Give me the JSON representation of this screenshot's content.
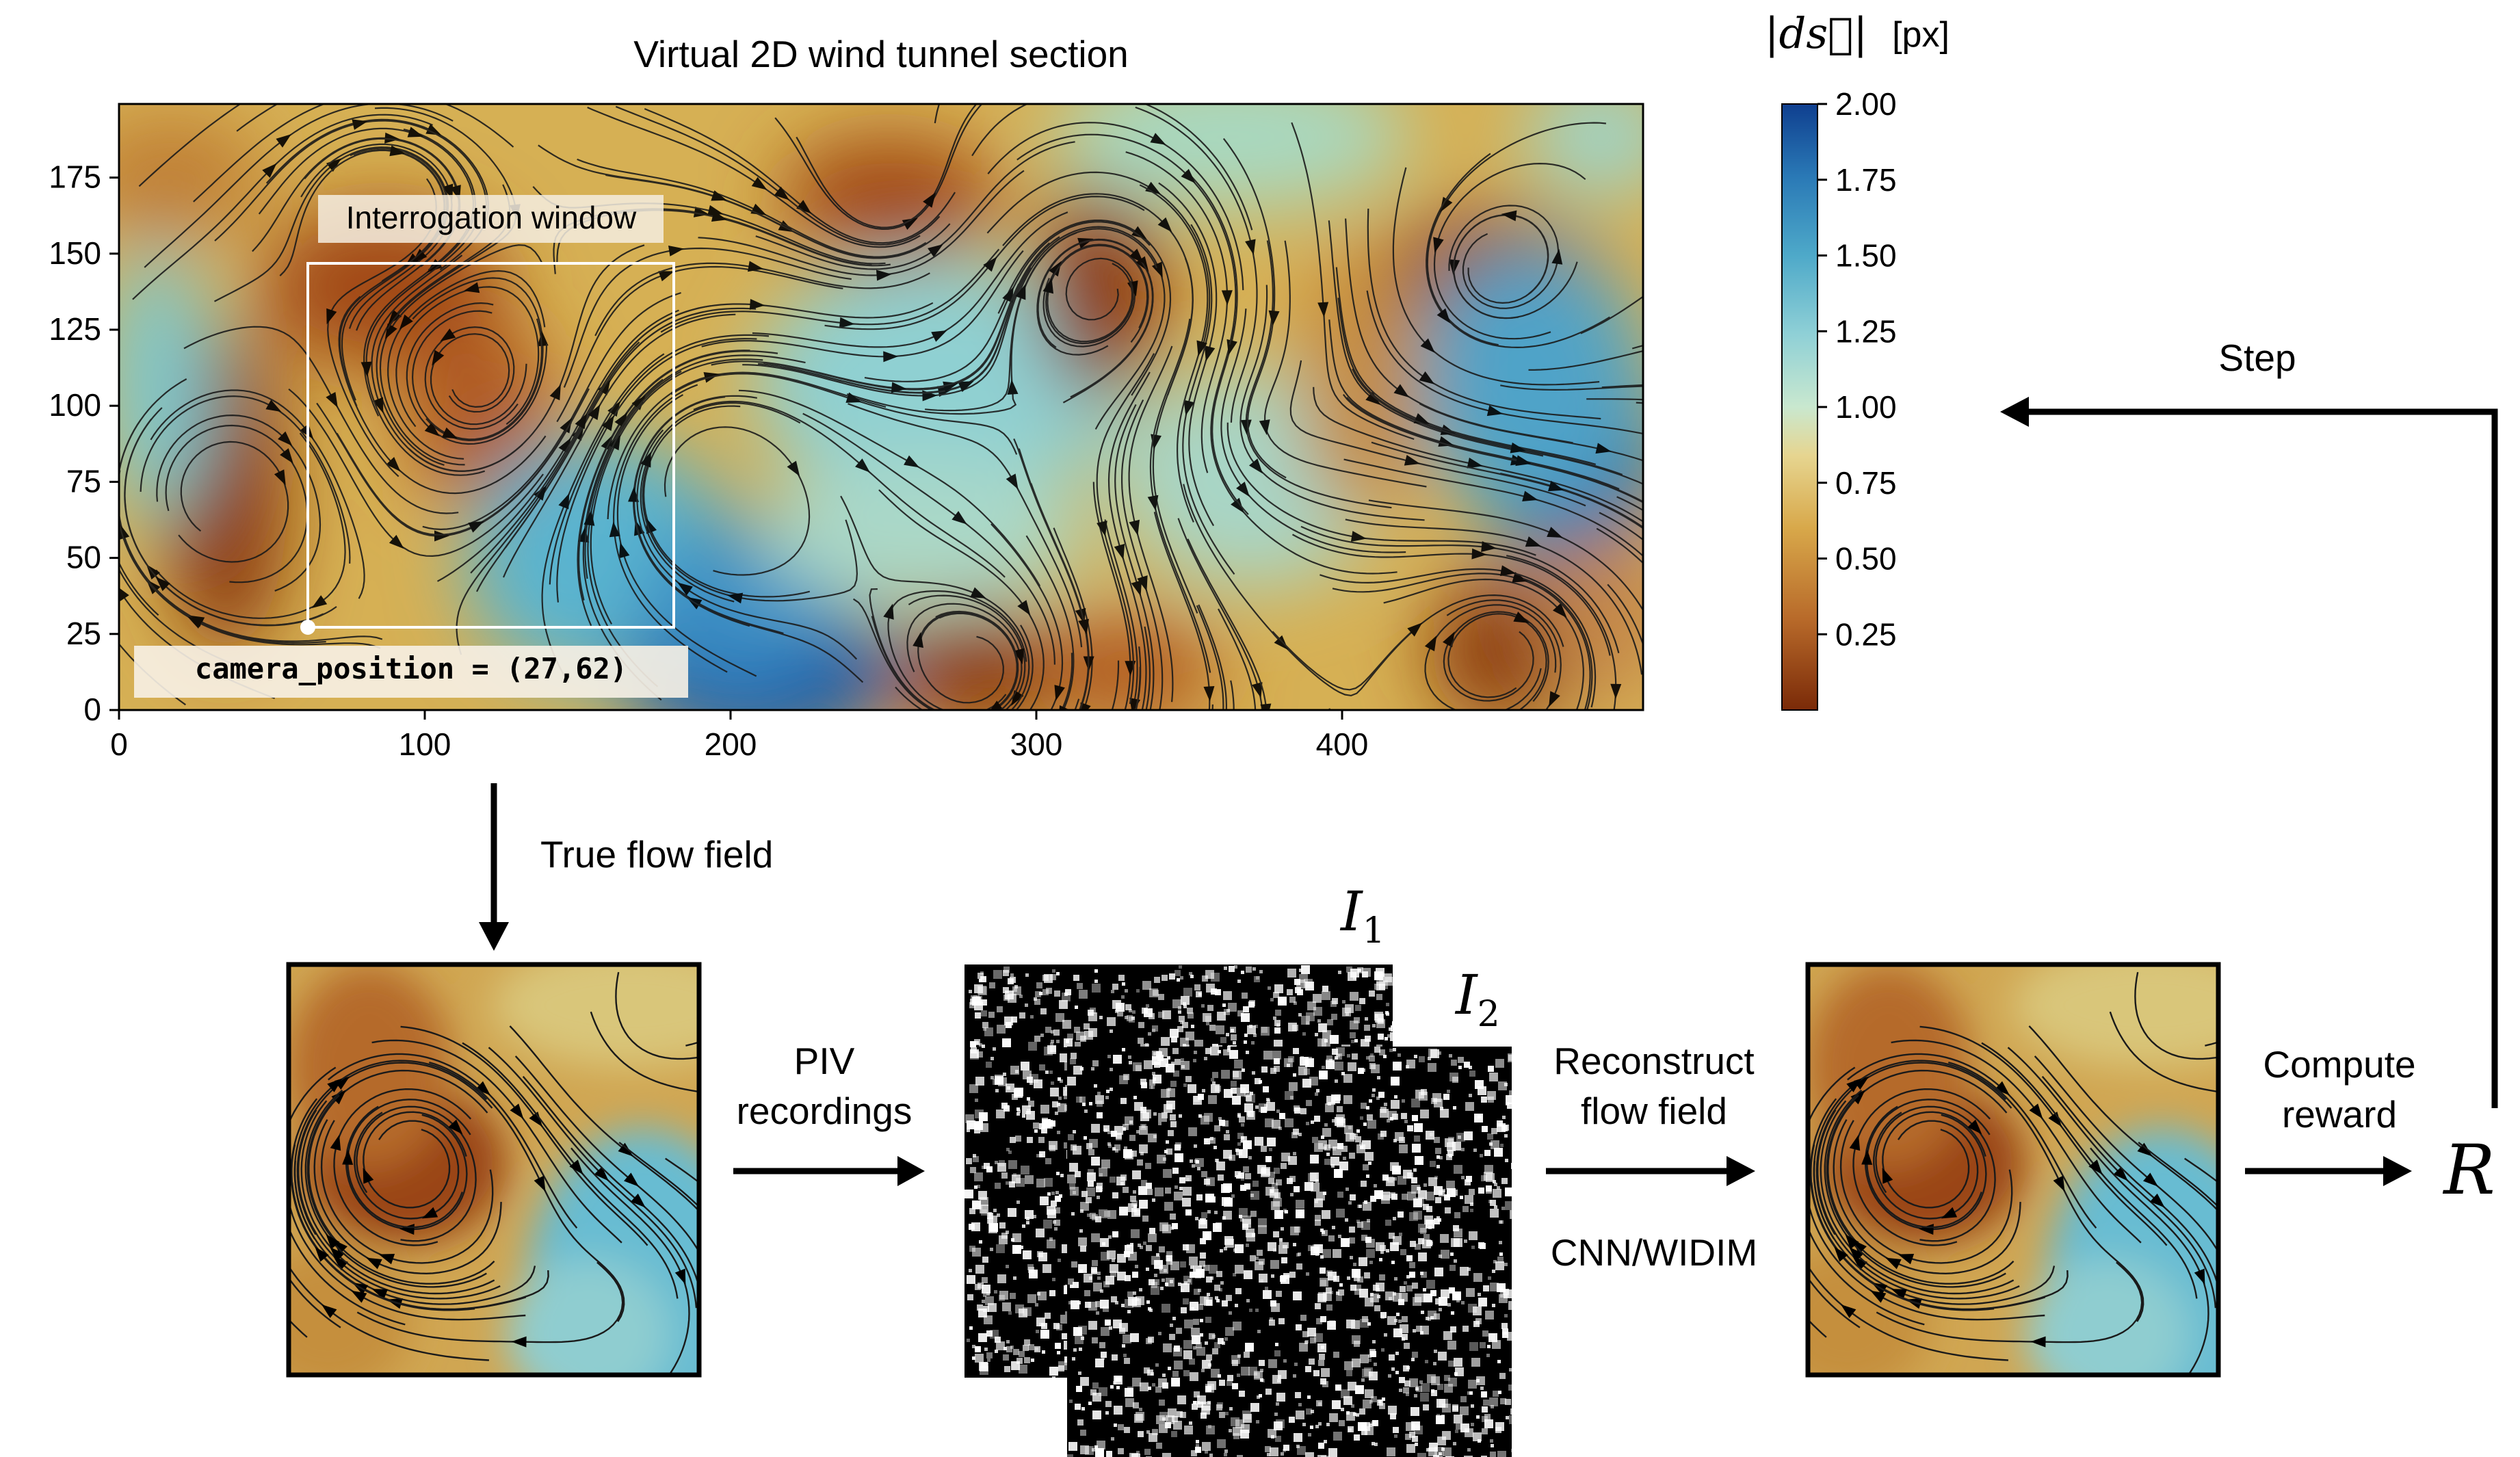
{
  "main_plot": {
    "title": "Virtual 2D wind tunnel section",
    "x_ticks": [
      "0",
      "100",
      "200",
      "300",
      "400"
    ],
    "y_ticks": [
      "0",
      "25",
      "50",
      "75",
      "100",
      "125",
      "150",
      "175"
    ],
    "interrogation_label": "Interrogation window",
    "camera_label": "camera_position = (27,62)"
  },
  "colorbar": {
    "symbol": "|ds⃗|",
    "unit": "[px]",
    "ticks": [
      "2.00",
      "1.75",
      "1.50",
      "1.25",
      "1.00",
      "0.75",
      "0.50",
      "0.25"
    ]
  },
  "flow": {
    "true_flow_label": "True flow field",
    "piv_label_1": "PIV",
    "piv_label_2": "recordings",
    "i1_base": "I",
    "i1_sub": "1",
    "i2_base": "I",
    "i2_sub": "2",
    "reconstruct_1": "Reconstruct",
    "reconstruct_2": "flow field",
    "method_label": "CNN/WIDIM",
    "compute_1": "Compute",
    "compute_2": "reward",
    "reward_symbol": "R",
    "step_label": "Step"
  },
  "colors": {
    "brown": "#8c3a10",
    "ochre": "#c9a24e",
    "cyan": "#73c6cf",
    "blue": "#1f5aa8"
  }
}
